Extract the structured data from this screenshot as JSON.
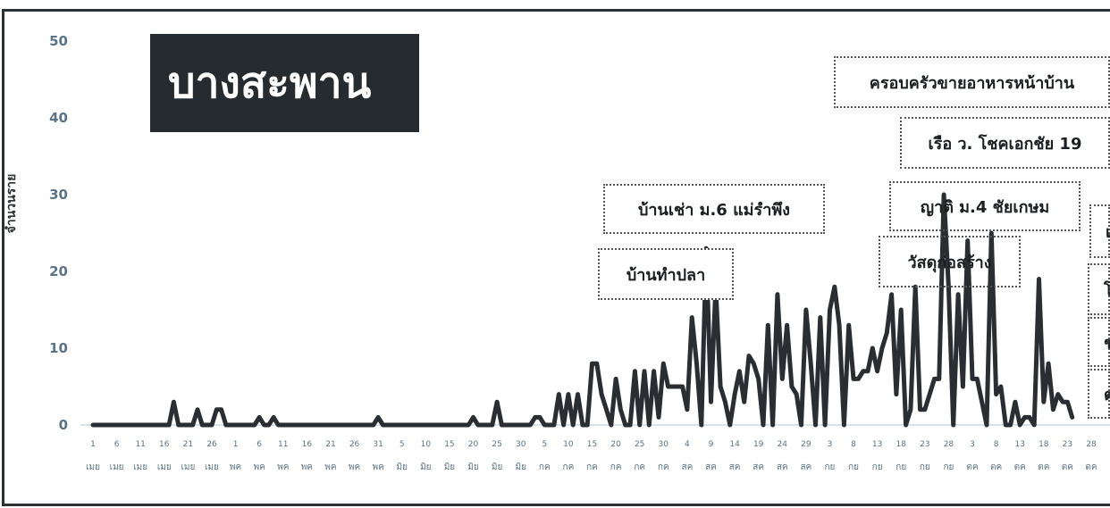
{
  "title": "บางสะพาน",
  "chart_data": {
    "type": "line",
    "ylabel": "จำนวนราย",
    "xlabel": "",
    "ylim": [
      0,
      50
    ],
    "y_ticks": [
      "0",
      "10",
      "20",
      "30",
      "40",
      "50"
    ],
    "x_tick_days": [
      "1",
      "6",
      "11",
      "16",
      "21",
      "26",
      "1",
      "6",
      "11",
      "16",
      "21",
      "26",
      "31",
      "5",
      "10",
      "15",
      "20",
      "25",
      "30",
      "5",
      "10",
      "15",
      "20",
      "25",
      "30",
      "4",
      "9",
      "14",
      "19",
      "24",
      "29",
      "3",
      "8",
      "13",
      "18",
      "23",
      "28",
      "3",
      "8",
      "13",
      "18",
      "23",
      "28"
    ],
    "x_tick_months": [
      "เมย",
      "เมย",
      "เมย",
      "เมย",
      "เมย",
      "เมย",
      "พค",
      "พค",
      "พค",
      "พค",
      "พค",
      "พค",
      "พค",
      "มิย",
      "มิย",
      "มิย",
      "มิย",
      "มิย",
      "มิย",
      "กค",
      "กค",
      "กค",
      "กค",
      "กค",
      "กค",
      "สค",
      "สค",
      "สค",
      "สค",
      "สค",
      "สค",
      "กย",
      "กย",
      "กย",
      "กย",
      "กย",
      "กย",
      "ตค",
      "ตค",
      "ตค",
      "ตค",
      "ตค",
      "ตค"
    ],
    "series": [
      {
        "values": [
          0,
          0,
          0,
          0,
          0,
          0,
          0,
          0,
          0,
          0,
          0,
          0,
          0,
          0,
          0,
          0,
          0,
          3,
          0,
          0,
          0,
          0,
          2,
          0,
          0,
          0,
          2,
          2,
          0,
          0,
          0,
          0,
          0,
          0,
          0,
          1,
          0,
          0,
          1,
          0,
          0,
          0,
          0,
          0,
          0,
          0,
          0,
          0,
          0,
          0,
          0,
          0,
          0,
          0,
          0,
          0,
          0,
          0,
          0,
          0,
          1,
          0,
          0,
          0,
          0,
          0,
          0,
          0,
          0,
          0,
          0,
          0,
          0,
          0,
          0,
          0,
          0,
          0,
          0,
          0,
          1,
          0,
          0,
          0,
          0,
          3,
          0,
          0,
          0,
          0,
          0,
          0,
          0,
          1,
          1,
          0,
          0,
          0,
          4,
          0,
          4,
          0,
          4,
          0,
          0,
          8,
          8,
          4,
          2,
          0,
          6,
          2,
          0,
          0,
          7,
          0,
          7,
          0,
          7,
          1,
          8,
          5,
          5,
          5,
          5,
          2,
          14,
          8,
          0,
          23,
          3,
          18,
          5,
          3,
          0,
          4,
          7,
          3,
          9,
          8,
          6,
          0,
          13,
          0,
          17,
          6,
          13,
          5,
          4,
          0,
          15,
          8,
          0,
          14,
          0,
          15,
          18,
          13,
          0,
          13,
          6,
          6,
          7,
          7,
          10,
          7,
          10,
          12,
          17,
          4,
          15,
          0,
          2,
          18,
          2,
          2,
          4,
          6,
          6,
          30,
          18,
          0,
          17,
          5,
          24,
          6,
          6,
          3,
          0,
          25,
          4,
          5,
          0,
          0,
          3,
          0,
          1,
          1,
          0,
          19,
          3,
          8,
          2,
          4,
          3,
          3,
          1
        ],
        "color": "#2a2e33"
      }
    ],
    "x_count": 211,
    "annotations": [
      {
        "id": "banchao",
        "text": "บ้านเช่า ม.6 แม่รำพึง"
      },
      {
        "id": "bantham",
        "text": "บ้านทำปลา"
      },
      {
        "id": "family",
        "text": "ครอบครัวขายอาหารหน้าบ้าน"
      },
      {
        "id": "boat",
        "text": "เรือ ว. โชคเอกชัย 19"
      },
      {
        "id": "relative",
        "text": "ญาติ ม.4 ชัยเกษม"
      },
      {
        "id": "material",
        "text": "วัสดุก่อสร้าง"
      },
      {
        "id": "cut1",
        "text": "เ"
      },
      {
        "id": "cut2",
        "text": "โ"
      },
      {
        "id": "cut3",
        "text": "ช"
      },
      {
        "id": "cut4",
        "text": "ต"
      }
    ]
  }
}
